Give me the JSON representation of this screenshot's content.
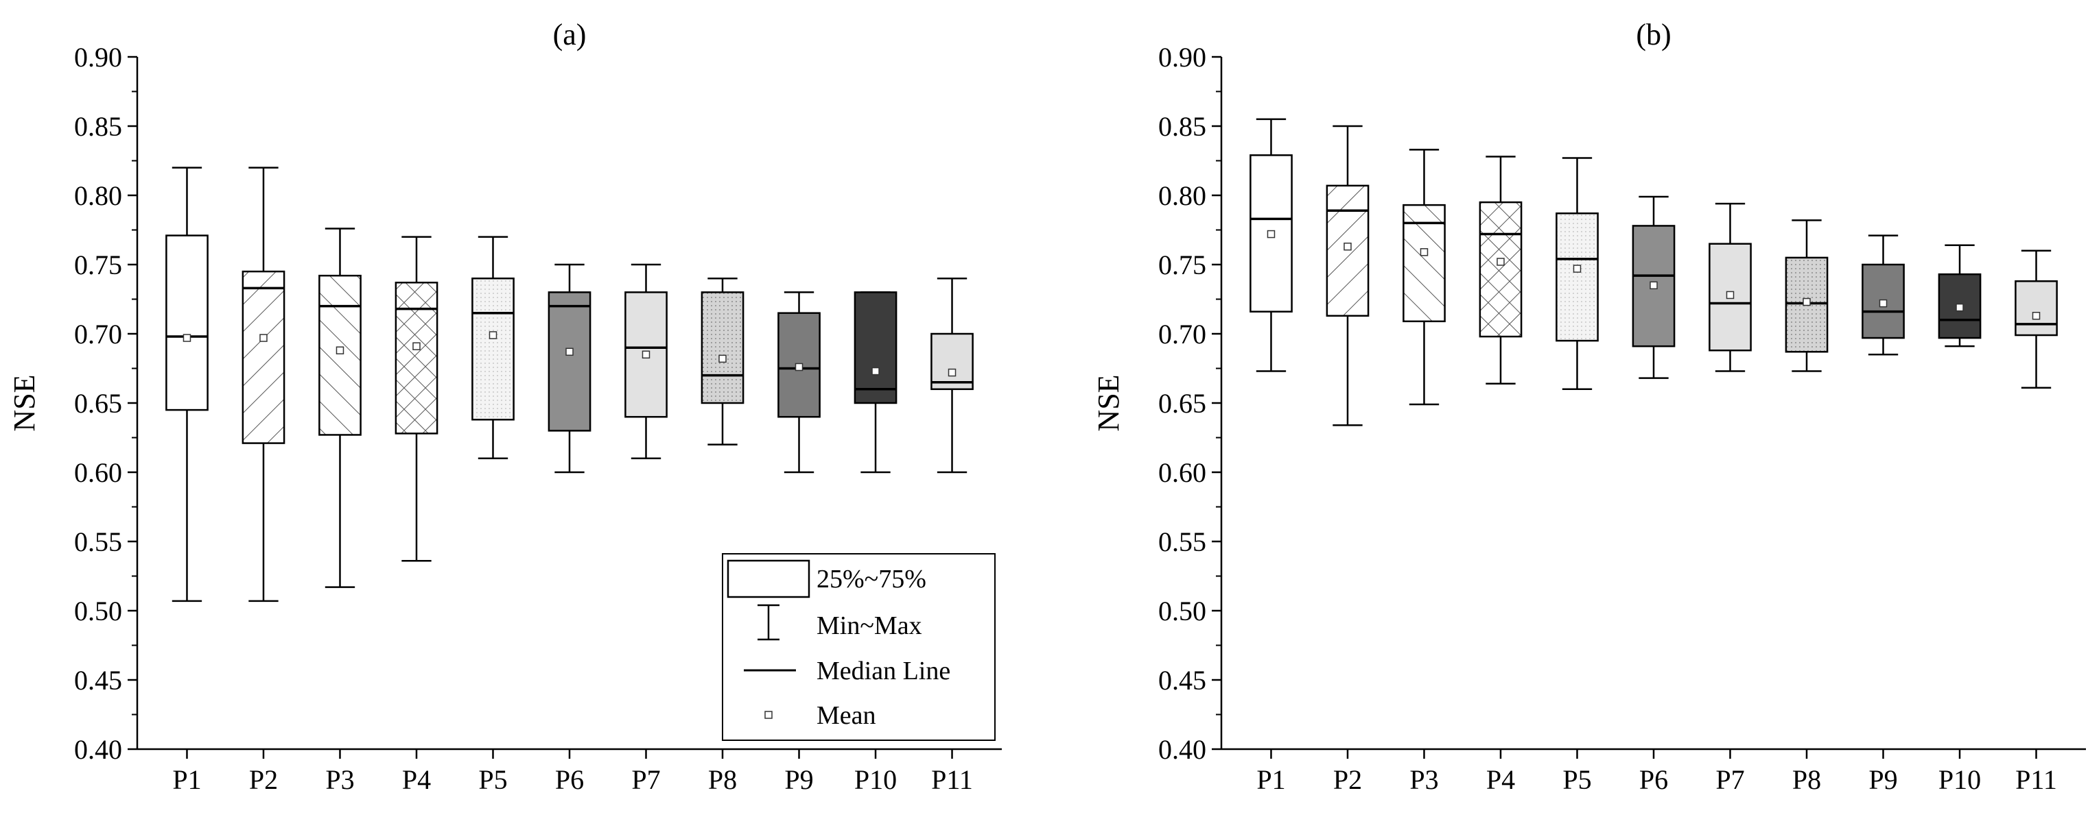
{
  "chart_data": [
    {
      "type": "box",
      "title": "(a)",
      "ylabel": "NSE",
      "xlabel": "",
      "ylim": [
        0.4,
        0.9
      ],
      "yticks": [
        "0.40",
        "0.45",
        "0.50",
        "0.55",
        "0.60",
        "0.65",
        "0.70",
        "0.75",
        "0.80",
        "0.85",
        "0.90"
      ],
      "categories": [
        "P1",
        "P2",
        "P3",
        "P4",
        "P5",
        "P6",
        "P7",
        "P8",
        "P9",
        "P10",
        "P11"
      ],
      "boxes": [
        {
          "min": 0.507,
          "q1": 0.645,
          "median": 0.698,
          "q3": 0.771,
          "max": 0.82,
          "mean": 0.697
        },
        {
          "min": 0.507,
          "q1": 0.621,
          "median": 0.733,
          "q3": 0.745,
          "max": 0.82,
          "mean": 0.697
        },
        {
          "min": 0.517,
          "q1": 0.627,
          "median": 0.72,
          "q3": 0.742,
          "max": 0.776,
          "mean": 0.688
        },
        {
          "min": 0.536,
          "q1": 0.628,
          "median": 0.718,
          "q3": 0.737,
          "max": 0.77,
          "mean": 0.691
        },
        {
          "min": 0.61,
          "q1": 0.638,
          "median": 0.715,
          "q3": 0.74,
          "max": 0.77,
          "mean": 0.699
        },
        {
          "min": 0.6,
          "q1": 0.63,
          "median": 0.72,
          "q3": 0.73,
          "max": 0.75,
          "mean": 0.687
        },
        {
          "min": 0.61,
          "q1": 0.64,
          "median": 0.69,
          "q3": 0.73,
          "max": 0.75,
          "mean": 0.685
        },
        {
          "min": 0.62,
          "q1": 0.65,
          "median": 0.67,
          "q3": 0.73,
          "max": 0.74,
          "mean": 0.682
        },
        {
          "min": 0.6,
          "q1": 0.64,
          "median": 0.675,
          "q3": 0.715,
          "max": 0.73,
          "mean": 0.676
        },
        {
          "min": 0.6,
          "q1": 0.65,
          "median": 0.66,
          "q3": 0.73,
          "max": 0.73,
          "mean": 0.673
        },
        {
          "min": 0.6,
          "q1": 0.66,
          "median": 0.665,
          "q3": 0.7,
          "max": 0.74,
          "mean": 0.672
        }
      ],
      "legend": {
        "position": "bottom-right",
        "items": [
          "25%~75%",
          "Min~Max",
          "Median Line",
          "Mean"
        ]
      }
    },
    {
      "type": "box",
      "title": "(b)",
      "ylabel": "NSE",
      "xlabel": "",
      "ylim": [
        0.4,
        0.9
      ],
      "yticks": [
        "0.40",
        "0.45",
        "0.50",
        "0.55",
        "0.60",
        "0.65",
        "0.70",
        "0.75",
        "0.80",
        "0.85",
        "0.90"
      ],
      "categories": [
        "P1",
        "P2",
        "P3",
        "P4",
        "P5",
        "P6",
        "P7",
        "P8",
        "P9",
        "P10",
        "P11"
      ],
      "boxes": [
        {
          "min": 0.673,
          "q1": 0.716,
          "median": 0.783,
          "q3": 0.829,
          "max": 0.855,
          "mean": 0.772
        },
        {
          "min": 0.634,
          "q1": 0.713,
          "median": 0.789,
          "q3": 0.807,
          "max": 0.85,
          "mean": 0.763
        },
        {
          "min": 0.649,
          "q1": 0.709,
          "median": 0.78,
          "q3": 0.793,
          "max": 0.833,
          "mean": 0.759
        },
        {
          "min": 0.664,
          "q1": 0.698,
          "median": 0.772,
          "q3": 0.795,
          "max": 0.828,
          "mean": 0.752
        },
        {
          "min": 0.66,
          "q1": 0.695,
          "median": 0.754,
          "q3": 0.787,
          "max": 0.827,
          "mean": 0.747
        },
        {
          "min": 0.668,
          "q1": 0.691,
          "median": 0.742,
          "q3": 0.778,
          "max": 0.799,
          "mean": 0.735
        },
        {
          "min": 0.673,
          "q1": 0.688,
          "median": 0.722,
          "q3": 0.765,
          "max": 0.794,
          "mean": 0.728
        },
        {
          "min": 0.673,
          "q1": 0.687,
          "median": 0.722,
          "q3": 0.755,
          "max": 0.782,
          "mean": 0.723
        },
        {
          "min": 0.685,
          "q1": 0.697,
          "median": 0.716,
          "q3": 0.75,
          "max": 0.771,
          "mean": 0.722
        },
        {
          "min": 0.691,
          "q1": 0.697,
          "median": 0.71,
          "q3": 0.743,
          "max": 0.764,
          "mean": 0.719
        },
        {
          "min": 0.661,
          "q1": 0.699,
          "median": 0.707,
          "q3": 0.738,
          "max": 0.76,
          "mean": 0.713
        }
      ]
    }
  ],
  "colors": {
    "axis": "#000000",
    "p5_fill": "#f0f0f0",
    "p6_fill": "#8e8e8e",
    "p7_fill": "#e2e2e2",
    "p8_fill": "#c4c4c4",
    "p9_fill": "#7c7c7c",
    "p10_fill": "#3c3c3c",
    "p11_fill": "#e0e0e0"
  }
}
